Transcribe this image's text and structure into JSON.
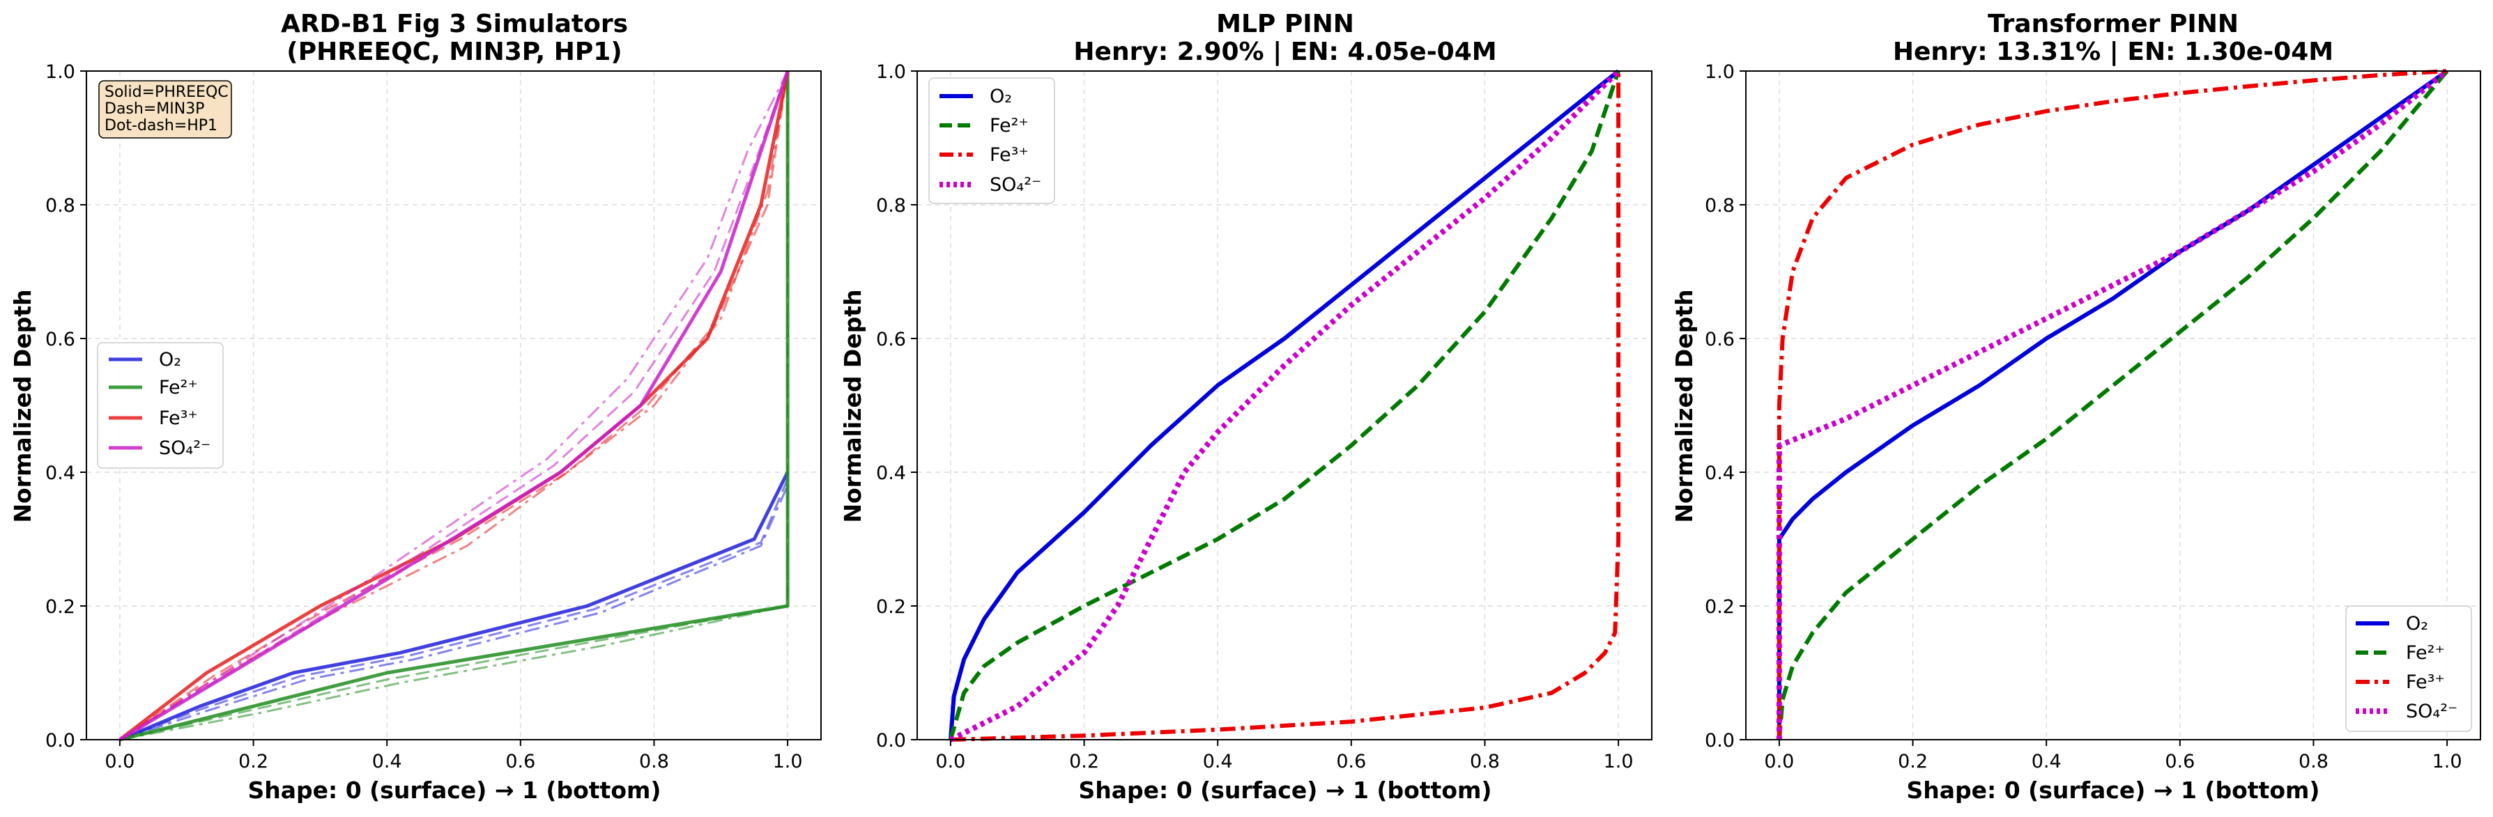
{
  "chart_data": [
    {
      "type": "line",
      "title_lines": [
        "ARD-B1 Fig 3 Simulators",
        "(PHREEQC, MIN3P, HP1)"
      ],
      "xlabel": "Shape: 0 (surface) → 1 (bottom)",
      "ylabel": "Normalized Depth",
      "xlim": [
        -0.05,
        1.05
      ],
      "ylim": [
        0,
        1
      ],
      "xticks": [
        "0.0",
        "0.2",
        "0.4",
        "0.6",
        "0.8",
        "1.0"
      ],
      "yticks": [
        "0.0",
        "0.2",
        "0.4",
        "0.6",
        "0.8",
        "1.0"
      ],
      "grid": true,
      "legend_position": "center-left",
      "note": [
        "Solid=PHREEQC",
        "Dash=MIN3P",
        "Dot-dash=HP1"
      ],
      "legend": [
        {
          "label": "O₂",
          "color": "#1f1fdc"
        },
        {
          "label": "Fe²⁺",
          "color": "#1e8c1e"
        },
        {
          "label": "Fe³⁺",
          "color": "#e61e1e"
        },
        {
          "label": "SO₄²⁻",
          "color": "#c81ec8"
        }
      ],
      "series": [
        {
          "color": "#1f1fdc",
          "style": "solid",
          "x": [
            0,
            0.12,
            0.26,
            0.42,
            0.7,
            0.95,
            1.0
          ],
          "y": [
            0,
            0.05,
            0.1,
            0.13,
            0.2,
            0.3,
            0.4
          ]
        },
        {
          "color": "#1f1fdc",
          "style": "dash",
          "x": [
            0,
            0.12,
            0.27,
            0.43,
            0.71,
            0.96,
            1.0
          ],
          "y": [
            0,
            0.045,
            0.095,
            0.125,
            0.195,
            0.295,
            0.39
          ]
        },
        {
          "color": "#1f1fdc",
          "style": "dashdot",
          "x": [
            0,
            0.13,
            0.28,
            0.44,
            0.72,
            0.96,
            1.0
          ],
          "y": [
            0,
            0.043,
            0.09,
            0.12,
            0.19,
            0.29,
            0.38
          ]
        },
        {
          "color": "#1e8c1e",
          "style": "solid",
          "x": [
            0,
            0.2,
            0.4,
            0.7,
            1.0,
            1.0
          ],
          "y": [
            0,
            0.05,
            0.1,
            0.15,
            0.2,
            1.0
          ]
        },
        {
          "color": "#1e8c1e",
          "style": "dash",
          "x": [
            0,
            0.2,
            0.4,
            0.7,
            1.0,
            1.0
          ],
          "y": [
            0,
            0.045,
            0.09,
            0.145,
            0.2,
            1.0
          ]
        },
        {
          "color": "#1e8c1e",
          "style": "dashdot",
          "x": [
            0,
            0.21,
            0.42,
            0.72,
            1.0,
            1.0
          ],
          "y": [
            0,
            0.04,
            0.085,
            0.14,
            0.2,
            1.0
          ]
        },
        {
          "color": "#e61e1e",
          "style": "solid",
          "x": [
            0,
            0.13,
            0.3,
            0.5,
            0.66,
            0.78,
            0.88,
            0.96,
            1.0
          ],
          "y": [
            0,
            0.1,
            0.2,
            0.3,
            0.4,
            0.5,
            0.6,
            0.8,
            1.0
          ]
        },
        {
          "color": "#e61e1e",
          "style": "dash",
          "x": [
            0,
            0.14,
            0.31,
            0.51,
            0.67,
            0.79,
            0.89,
            0.97,
            1.0
          ],
          "y": [
            0,
            0.095,
            0.195,
            0.3,
            0.4,
            0.5,
            0.62,
            0.8,
            1.0
          ]
        },
        {
          "color": "#e61e1e",
          "style": "dashdot",
          "x": [
            0,
            0.14,
            0.32,
            0.52,
            0.67,
            0.8,
            0.9,
            0.97,
            1.0
          ],
          "y": [
            0,
            0.09,
            0.19,
            0.29,
            0.4,
            0.5,
            0.63,
            0.82,
            1.0
          ]
        },
        {
          "color": "#c81ec8",
          "style": "solid",
          "x": [
            0,
            0.4,
            0.66,
            0.78,
            0.9,
            0.95,
            1.0
          ],
          "y": [
            0,
            0.24,
            0.4,
            0.5,
            0.7,
            0.85,
            1.0
          ]
        },
        {
          "color": "#c81ec8",
          "style": "dash",
          "x": [
            0,
            0.4,
            0.65,
            0.77,
            0.89,
            0.95,
            1.0
          ],
          "y": [
            0,
            0.245,
            0.41,
            0.52,
            0.7,
            0.86,
            1.0
          ]
        },
        {
          "color": "#c81ec8",
          "style": "dashdot",
          "x": [
            0,
            0.39,
            0.64,
            0.76,
            0.88,
            0.94,
            1.0
          ],
          "y": [
            0,
            0.25,
            0.42,
            0.54,
            0.72,
            0.88,
            1.0
          ]
        }
      ]
    },
    {
      "type": "line",
      "title_lines": [
        "MLP PINN",
        "Henry: 2.90% | EN: 4.05e-04M"
      ],
      "xlabel": "Shape: 0 (surface) → 1 (bottom)",
      "ylabel": "Normalized Depth",
      "xlim": [
        -0.05,
        1.05
      ],
      "ylim": [
        0,
        1
      ],
      "xticks": [
        "0.0",
        "0.2",
        "0.4",
        "0.6",
        "0.8",
        "1.0"
      ],
      "yticks": [
        "0.0",
        "0.2",
        "0.4",
        "0.6",
        "0.8",
        "1.0"
      ],
      "grid": true,
      "legend_position": "top-left",
      "legend": [
        {
          "label": "O₂",
          "color": "#0000dd",
          "style": "solid"
        },
        {
          "label": "Fe²⁺",
          "color": "#007a00",
          "style": "dash"
        },
        {
          "label": "Fe³⁺",
          "color": "#ee0000",
          "style": "dashdot"
        },
        {
          "label": "SO₄²⁻",
          "color": "#cc00cc",
          "style": "dot"
        }
      ],
      "series": [
        {
          "color": "#0000dd",
          "style": "solid",
          "x": [
            0,
            0.005,
            0.02,
            0.05,
            0.1,
            0.2,
            0.3,
            0.4,
            0.5,
            0.6,
            0.7,
            0.8,
            0.9,
            1.0
          ],
          "y": [
            0,
            0.065,
            0.12,
            0.18,
            0.25,
            0.34,
            0.44,
            0.53,
            0.6,
            0.68,
            0.76,
            0.84,
            0.92,
            1.0
          ]
        },
        {
          "color": "#007a00",
          "style": "dash",
          "x": [
            0,
            0.02,
            0.05,
            0.1,
            0.2,
            0.3,
            0.4,
            0.5,
            0.6,
            0.7,
            0.8,
            0.9,
            0.96,
            1.0
          ],
          "y": [
            0,
            0.07,
            0.11,
            0.145,
            0.2,
            0.25,
            0.3,
            0.36,
            0.44,
            0.53,
            0.64,
            0.78,
            0.88,
            1.0
          ]
        },
        {
          "color": "#ee0000",
          "style": "dashdot",
          "x": [
            0,
            0.2,
            0.4,
            0.6,
            0.8,
            0.9,
            0.95,
            0.98,
            0.995,
            1.0,
            1.0,
            1.0
          ],
          "y": [
            0,
            0.006,
            0.015,
            0.027,
            0.048,
            0.07,
            0.1,
            0.13,
            0.16,
            0.3,
            0.6,
            1.0
          ]
        },
        {
          "color": "#cc00cc",
          "style": "dot",
          "x": [
            0,
            0.1,
            0.2,
            0.25,
            0.3,
            0.35,
            0.4,
            0.5,
            0.6,
            0.7,
            0.8,
            0.9,
            1.0
          ],
          "y": [
            0,
            0.05,
            0.13,
            0.2,
            0.3,
            0.4,
            0.46,
            0.56,
            0.65,
            0.73,
            0.81,
            0.9,
            1.0
          ]
        }
      ]
    },
    {
      "type": "line",
      "title_lines": [
        "Transformer PINN",
        "Henry: 13.31% | EN: 1.30e-04M"
      ],
      "xlabel": "Shape: 0 (surface) → 1 (bottom)",
      "ylabel": "Normalized Depth",
      "xlim": [
        -0.05,
        1.05
      ],
      "ylim": [
        0,
        1
      ],
      "xticks": [
        "0.0",
        "0.2",
        "0.4",
        "0.6",
        "0.8",
        "1.0"
      ],
      "yticks": [
        "0.0",
        "0.2",
        "0.4",
        "0.6",
        "0.8",
        "1.0"
      ],
      "grid": true,
      "legend_position": "bottom-right",
      "legend": [
        {
          "label": "O₂",
          "color": "#0000dd",
          "style": "solid"
        },
        {
          "label": "Fe²⁺",
          "color": "#007a00",
          "style": "dash"
        },
        {
          "label": "Fe³⁺",
          "color": "#ee0000",
          "style": "dashdot"
        },
        {
          "label": "SO₄²⁻",
          "color": "#cc00cc",
          "style": "dot"
        }
      ],
      "series": [
        {
          "color": "#0000dd",
          "style": "solid",
          "x": [
            0,
            0,
            0.02,
            0.05,
            0.1,
            0.2,
            0.3,
            0.4,
            0.5,
            0.6,
            0.7,
            0.8,
            0.9,
            1.0
          ],
          "y": [
            0,
            0.3,
            0.33,
            0.36,
            0.4,
            0.47,
            0.53,
            0.6,
            0.66,
            0.73,
            0.79,
            0.86,
            0.93,
            1.0
          ]
        },
        {
          "color": "#007a00",
          "style": "dash",
          "x": [
            0,
            0.005,
            0.02,
            0.05,
            0.1,
            0.2,
            0.3,
            0.4,
            0.5,
            0.6,
            0.7,
            0.8,
            0.9,
            1.0
          ],
          "y": [
            0,
            0.06,
            0.11,
            0.16,
            0.22,
            0.3,
            0.38,
            0.45,
            0.53,
            0.61,
            0.69,
            0.78,
            0.88,
            1.0
          ]
        },
        {
          "color": "#ee0000",
          "style": "dashdot",
          "x": [
            0,
            0,
            0.005,
            0.02,
            0.05,
            0.1,
            0.2,
            0.3,
            0.4,
            0.5,
            0.6,
            0.7,
            0.8,
            0.9,
            1.0
          ],
          "y": [
            0,
            0.5,
            0.6,
            0.7,
            0.78,
            0.84,
            0.89,
            0.92,
            0.94,
            0.955,
            0.967,
            0.977,
            0.986,
            0.994,
            1.0
          ]
        },
        {
          "color": "#cc00cc",
          "style": "dot",
          "x": [
            0,
            0,
            0.05,
            0.1,
            0.2,
            0.3,
            0.4,
            0.5,
            0.6,
            0.7,
            0.8,
            0.9,
            1.0
          ],
          "y": [
            0,
            0.44,
            0.46,
            0.48,
            0.53,
            0.58,
            0.63,
            0.68,
            0.73,
            0.79,
            0.85,
            0.92,
            1.0
          ]
        }
      ]
    }
  ]
}
